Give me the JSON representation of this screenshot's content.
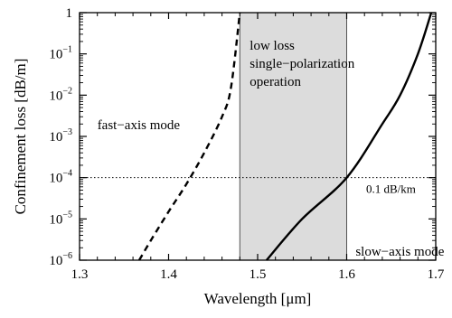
{
  "chart_data": {
    "type": "line",
    "xlabel": "Wavelength [μm]",
    "ylabel": "Confinement loss [dB/m]",
    "xlim": [
      1.3,
      1.7
    ],
    "ylim": [
      1e-06,
      1
    ],
    "y_scale": "log",
    "x_ticks": [
      1.3,
      1.4,
      1.5,
      1.6,
      1.7
    ],
    "x_tick_labels": [
      "1.3",
      "1.4",
      "1.5",
      "1.6",
      "1.7"
    ],
    "y_ticks": [
      {
        "value": 1,
        "base": "1",
        "exp": ""
      },
      {
        "value": 0.1,
        "base": "10",
        "exp": "−1"
      },
      {
        "value": 0.01,
        "base": "10",
        "exp": "−2"
      },
      {
        "value": 0.001,
        "base": "10",
        "exp": "−3"
      },
      {
        "value": 0.0001,
        "base": "10",
        "exp": "−4"
      },
      {
        "value": 1e-05,
        "base": "10",
        "exp": "−5"
      },
      {
        "value": 1e-06,
        "base": "10",
        "exp": "−6"
      }
    ],
    "series": [
      {
        "name": "fast−axis mode",
        "line_style": "dashed",
        "x": [
          1.367,
          1.38,
          1.4,
          1.42,
          1.44,
          1.46,
          1.47,
          1.48
        ],
        "y": [
          1e-06,
          3e-06,
          1.5e-05,
          7e-05,
          0.0004,
          0.003,
          0.015,
          1
        ]
      },
      {
        "name": "slow−axis mode",
        "line_style": "solid",
        "x": [
          1.51,
          1.55,
          1.6,
          1.64,
          1.66,
          1.68,
          1.695
        ],
        "y": [
          1e-06,
          1e-05,
          0.0001,
          0.002,
          0.01,
          0.1,
          1
        ]
      }
    ],
    "reference_line": {
      "y": 0.0001,
      "style": "dotted",
      "label": "0.1 dB/km"
    },
    "shaded_region": {
      "x": [
        1.48,
        1.6
      ],
      "color": "#dcdcdc",
      "label_lines": [
        "low loss",
        "single−polarization",
        "operation"
      ]
    },
    "annotations": [
      {
        "text": "fast−axis mode",
        "x": 1.32,
        "y": 0.0015
      },
      {
        "text": "slow−axis mode",
        "x": 1.61,
        "y": 1.3e-06
      }
    ],
    "grid": false,
    "legend": "none"
  }
}
